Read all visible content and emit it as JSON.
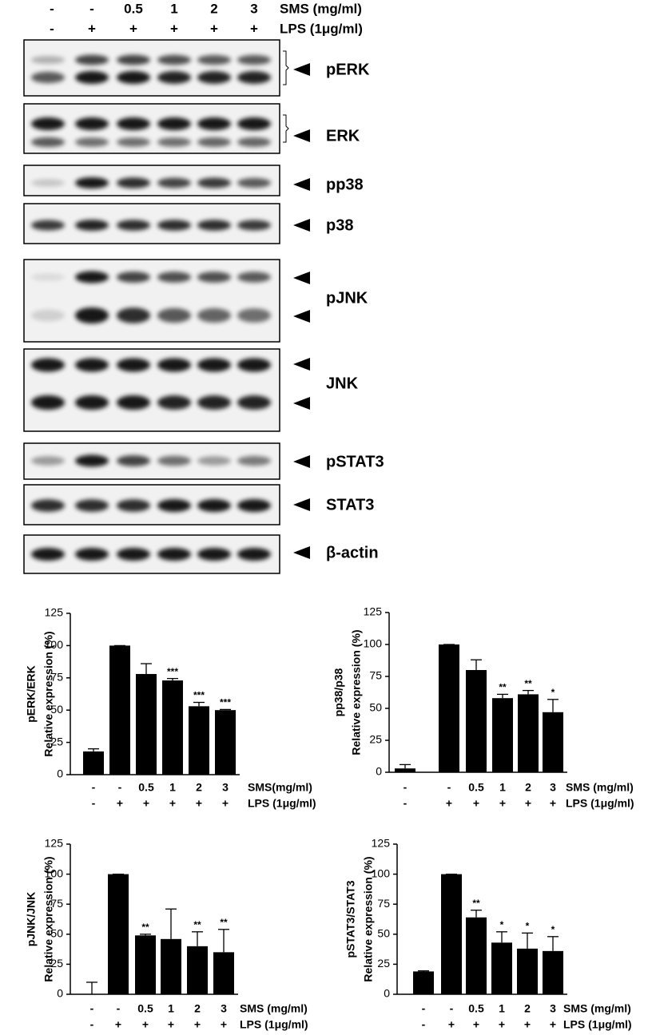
{
  "blot": {
    "treatments": [
      {
        "label": "SMS (mg/ml)",
        "lanes": [
          "-",
          "-",
          "0.5",
          "1",
          "2",
          "3"
        ]
      },
      {
        "label": "LPS (1μg/ml)",
        "lanes": [
          "-",
          "+",
          "+",
          "+",
          "+",
          "+"
        ]
      }
    ],
    "proteins": [
      "pERK",
      "ERK",
      "pp38",
      "p38",
      "pJNK",
      "JNK",
      "pSTAT3",
      "STAT3",
      "β-actin"
    ]
  },
  "chart_data": [
    {
      "type": "bar",
      "ylabel_top": "pERK/ERK",
      "ylabel": "Relative expression (%)",
      "categories": [
        "-",
        "-",
        "0.5",
        "1",
        "2",
        "3"
      ],
      "categories2": [
        "-",
        "+",
        "+",
        "+",
        "+",
        "+"
      ],
      "row_labels": [
        "SMS(mg/ml)",
        "LPS (1μg/ml)"
      ],
      "values": [
        18,
        100,
        78,
        73,
        53,
        50
      ],
      "errors": [
        2,
        0,
        8,
        1.5,
        3,
        0.5
      ],
      "annotations": [
        null,
        null,
        null,
        "***",
        "***",
        "***"
      ],
      "ylim": [
        0,
        125
      ],
      "yticks": [
        0,
        25,
        50,
        75,
        100,
        125
      ],
      "color": "#000000"
    },
    {
      "type": "bar",
      "ylabel_top": "pp38/p38",
      "ylabel": "Relative expression (%)",
      "categories": [
        "-",
        "-",
        "0.5",
        "1",
        "2",
        "3"
      ],
      "categories2": [
        "-",
        "+",
        "+",
        "+",
        "+",
        "+"
      ],
      "row_labels": [
        "SMS (mg/ml)",
        "LPS (1μg/ml)"
      ],
      "values": [
        3,
        100,
        80,
        58,
        61,
        47
      ],
      "errors": [
        3,
        0,
        8,
        3,
        3,
        10
      ],
      "annotations": [
        null,
        null,
        null,
        "**",
        "**",
        "*"
      ],
      "ylim": [
        0,
        125
      ],
      "yticks": [
        0,
        25,
        50,
        75,
        100,
        125
      ],
      "color": "#000000"
    },
    {
      "type": "bar",
      "ylabel_top": "pJNK/JNK",
      "ylabel": "Relative expression (%)",
      "categories": [
        "-",
        "-",
        "0.5",
        "1",
        "2",
        "3"
      ],
      "categories2": [
        "-",
        "+",
        "+",
        "+",
        "+",
        "+"
      ],
      "row_labels": [
        "SMS (mg/ml)",
        "LPS (1μg/ml)"
      ],
      "values": [
        0,
        100,
        49,
        46,
        40,
        35
      ],
      "errors": [
        10,
        0,
        1,
        25,
        12,
        19
      ],
      "annotations": [
        null,
        null,
        "**",
        null,
        "**",
        "**"
      ],
      "ylim": [
        0,
        125
      ],
      "yticks": [
        0,
        25,
        50,
        75,
        100,
        125
      ],
      "color": "#000000"
    },
    {
      "type": "bar",
      "ylabel_top": "pSTAT3/STAT3",
      "ylabel": "Relative expression (%)",
      "categories": [
        "-",
        "-",
        "0.5",
        "1",
        "2",
        "3"
      ],
      "categories2": [
        "-",
        "+",
        "+",
        "+",
        "+",
        "+"
      ],
      "row_labels": [
        "SMS (mg/ml)",
        "LPS (1μg/ml)"
      ],
      "values": [
        19,
        100,
        64,
        43,
        38,
        36
      ],
      "errors": [
        0.5,
        0,
        6,
        9,
        13,
        12
      ],
      "annotations": [
        null,
        null,
        "**",
        "*",
        "*",
        "*"
      ],
      "ylim": [
        0,
        125
      ],
      "yticks": [
        0,
        25,
        50,
        75,
        100,
        125
      ],
      "color": "#000000"
    }
  ]
}
